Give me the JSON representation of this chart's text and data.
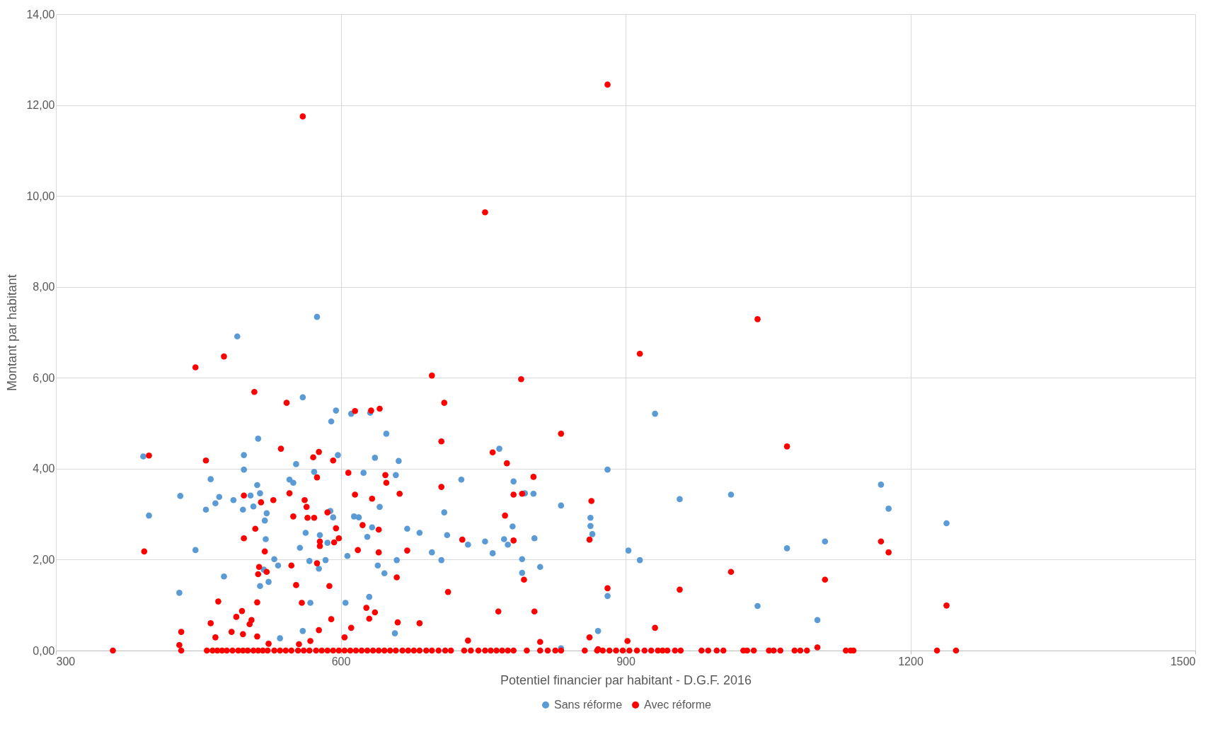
{
  "chart_data": {
    "type": "scatter",
    "xlabel": "Potentiel financier par habitant - D.G.F. 2016",
    "ylabel": "Montant par habitant",
    "xlim": [
      300,
      1500
    ],
    "xticks": [
      300,
      600,
      900,
      1200,
      1500
    ],
    "ylim": [
      0,
      14
    ],
    "yticks": [
      {
        "value": 0,
        "label": "0,00"
      },
      {
        "value": 2,
        "label": "2,00"
      },
      {
        "value": 4,
        "label": "4,00"
      },
      {
        "value": 6,
        "label": "6,00"
      },
      {
        "value": 8,
        "label": "8,00"
      },
      {
        "value": 10,
        "label": "10,00"
      },
      {
        "value": 12,
        "label": "12,00"
      },
      {
        "value": 14,
        "label": "14,00"
      }
    ],
    "grid": true,
    "legend": "bottom",
    "marker": "circle",
    "series": [
      {
        "name": "Sans réforme",
        "color": "#5b9bd5",
        "x": [
          392,
          398,
          431,
          430,
          447,
          458,
          463,
          468,
          472,
          477,
          487,
          491,
          497,
          498,
          498,
          505,
          508,
          512,
          513,
          515,
          520,
          521,
          522,
          524,
          515,
          519,
          530,
          534,
          536,
          546,
          550,
          553,
          557,
          560,
          560,
          563,
          567,
          568,
          572,
          575,
          577,
          578,
          584,
          586,
          589,
          590,
          592,
          595,
          597,
          605,
          607,
          611,
          614,
          619,
          624,
          628,
          630,
          631,
          633,
          636,
          639,
          641,
          646,
          648,
          657,
          658,
          659,
          661,
          670,
          683,
          696,
          706,
          709,
          712,
          727,
          734,
          752,
          760,
          767,
          772,
          776,
          782,
          781,
          791,
          791,
          794,
          803,
          804,
          810,
          832,
          863,
          863,
          865,
          871,
          881,
          881,
          903,
          915,
          931,
          957,
          1011,
          1039,
          1070,
          1102,
          1110,
          1169,
          1177,
          1238,
          832
        ],
        "values": [
          4.27,
          2.97,
          3.4,
          1.27,
          2.21,
          3.1,
          3.77,
          3.24,
          3.38,
          1.63,
          3.31,
          6.91,
          3.1,
          4.3,
          3.98,
          3.41,
          3.17,
          3.64,
          4.66,
          3.46,
          2.86,
          2.45,
          3.02,
          1.51,
          1.42,
          1.78,
          2.01,
          1.87,
          0.27,
          3.76,
          3.69,
          4.1,
          2.26,
          5.57,
          0.43,
          2.59,
          1.97,
          1.05,
          3.93,
          7.34,
          1.8,
          2.54,
          1.99,
          2.37,
          3.07,
          5.04,
          2.93,
          5.28,
          4.3,
          1.05,
          2.08,
          5.21,
          2.95,
          2.93,
          3.91,
          2.5,
          1.18,
          5.23,
          2.71,
          4.24,
          1.87,
          3.16,
          1.7,
          4.77,
          0.38,
          3.86,
          1.99,
          4.17,
          2.68,
          2.59,
          2.16,
          1.99,
          3.04,
          2.54,
          3.76,
          2.33,
          2.4,
          2.14,
          4.44,
          2.45,
          2.33,
          3.72,
          2.73,
          2.01,
          1.71,
          3.46,
          3.45,
          2.47,
          1.84,
          3.19,
          2.92,
          2.74,
          2.56,
          0.43,
          3.98,
          1.2,
          2.2,
          1.99,
          5.21,
          3.33,
          3.43,
          0.98,
          2.25,
          0.67,
          2.4,
          3.65,
          3.12,
          2.8,
          0.05
        ]
      },
      {
        "name": "Avec réforme",
        "color": "#ff0000",
        "x": [
          360,
          393,
          398,
          447,
          430,
          432,
          432,
          458,
          463,
          468,
          471,
          477,
          485,
          490,
          496,
          498,
          498,
          497,
          504,
          506,
          509,
          510,
          512,
          512,
          513,
          514,
          516,
          520,
          522,
          524,
          529,
          537,
          543,
          546,
          548,
          550,
          553,
          556,
          559,
          562,
          564,
          565,
          568,
          571,
          572,
          575,
          575,
          577,
          577,
          578,
          578,
          586,
          588,
          590,
          592,
          593,
          595,
          598,
          604,
          608,
          611,
          615,
          615,
          618,
          623,
          627,
          630,
          632,
          633,
          636,
          641,
          640,
          640,
          647,
          648,
          659,
          660,
          662,
          670,
          683,
          696,
          706,
          706,
          709,
          713,
          728,
          734,
          760,
          766,
          752,
          773,
          775,
          782,
          782,
          790,
          791,
          793,
          803,
          804,
          810,
          832,
          862,
          864,
          862,
          871,
          881,
          881,
          902,
          915,
          931,
          957,
          1011,
          1039,
          1070,
          1102,
          1110,
          1169,
          1177,
          1238,
          560,
          459,
          465,
          470,
          475,
          480,
          486,
          492,
          497,
          502,
          508,
          513,
          518,
          523,
          530,
          536,
          542,
          548,
          555,
          561,
          567,
          574,
          580,
          586,
          592,
          598,
          604,
          610,
          616,
          622,
          628,
          634,
          640,
          646,
          652,
          658,
          665,
          671,
          677,
          683,
          690,
          696,
          703,
          710,
          716,
          730,
          737,
          745,
          752,
          758,
          764,
          770,
          776,
          782,
          796,
          810,
          818,
          826,
          832,
          857,
          870,
          876,
          883,
          890,
          897,
          904,
          912,
          920,
          927,
          934,
          939,
          944,
          952,
          958,
          980,
          987,
          996,
          1003,
          1024,
          1028,
          1035,
          1051,
          1056,
          1063,
          1078,
          1084,
          1091,
          1132,
          1137,
          1140,
          1228,
          1248
        ],
        "values": [
          0,
          2.18,
          4.29,
          6.23,
          0.12,
          0.41,
          0,
          4.18,
          0.6,
          0.29,
          1.08,
          6.47,
          0.41,
          0.74,
          0.87,
          3.41,
          2.47,
          0.36,
          0.58,
          0.67,
          5.69,
          2.68,
          0.31,
          1.06,
          1.68,
          1.84,
          3.26,
          2.18,
          1.73,
          0.15,
          3.31,
          4.44,
          5.45,
          3.46,
          1.87,
          2.95,
          1.44,
          0.14,
          1.05,
          3.31,
          3.16,
          2.92,
          0.21,
          4.25,
          2.92,
          3.81,
          1.92,
          4.37,
          0.45,
          2.4,
          2.3,
          3.04,
          1.42,
          0.69,
          4.18,
          2.38,
          2.69,
          2.47,
          0.29,
          3.91,
          0.5,
          5.27,
          3.43,
          2.21,
          2.76,
          0.94,
          0.7,
          5.28,
          3.34,
          0.84,
          5.32,
          2.66,
          2.16,
          3.86,
          3.69,
          1.61,
          0.62,
          3.45,
          2.2,
          0.6,
          6.05,
          3.6,
          4.6,
          5.45,
          1.29,
          2.44,
          0.22,
          4.36,
          0.86,
          9.64,
          2.97,
          4.12,
          3.43,
          2.42,
          5.97,
          3.45,
          1.56,
          3.82,
          0.86,
          0.19,
          4.77,
          2.44,
          3.29,
          0.29,
          0.03,
          12.45,
          1.37,
          0.21,
          6.53,
          0.5,
          1.34,
          1.73,
          7.29,
          4.49,
          0.07,
          1.56,
          2.4,
          2.16,
          0.99,
          11.75,
          0,
          0,
          0,
          0,
          0,
          0,
          0,
          0,
          0,
          0,
          0,
          0,
          0,
          0,
          0,
          0,
          0,
          0,
          0,
          0,
          0,
          0,
          0,
          0,
          0,
          0,
          0,
          0,
          0,
          0,
          0,
          0,
          0,
          0,
          0,
          0,
          0,
          0,
          0,
          0,
          0,
          0,
          0,
          0,
          0,
          0,
          0,
          0,
          0,
          0,
          0,
          0,
          0,
          0,
          0,
          0,
          0,
          0,
          0,
          0,
          0,
          0,
          0,
          0,
          0,
          0,
          0,
          0,
          0,
          0,
          0,
          0,
          0,
          0,
          0,
          0,
          0,
          0,
          0,
          0,
          0,
          0,
          0,
          0,
          0,
          0,
          0,
          0,
          0,
          0,
          0
        ]
      }
    ]
  }
}
